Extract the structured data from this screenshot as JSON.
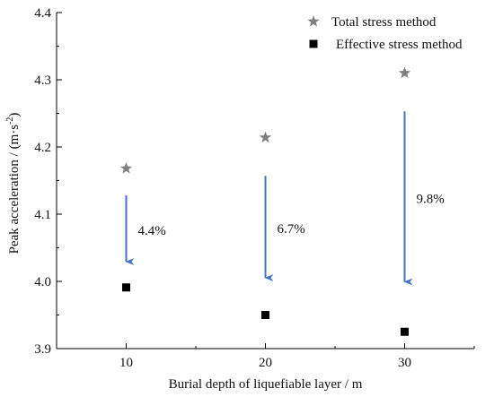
{
  "chart_data": {
    "type": "scatter",
    "xlabel": "Burial depth of liquefiable layer / m",
    "ylabel": "Peak acceleration / (m·s",
    "ylabel_sup": "-2",
    "ylabel_close": ")",
    "xlim": [
      5,
      35
    ],
    "ylim": [
      3.9,
      4.4
    ],
    "x_ticks": [
      10,
      20,
      30
    ],
    "y_ticks": [
      3.9,
      4.0,
      4.1,
      4.2,
      4.3,
      4.4
    ],
    "grid": false,
    "legend_position": "top-right",
    "series": [
      {
        "name": "Total stress method",
        "marker": "star",
        "color": "#7f7f7f",
        "x": [
          10,
          20,
          30
        ],
        "y": [
          4.168,
          4.214,
          4.31
        ]
      },
      {
        "name": "Effective stress method",
        "marker": "square",
        "color": "#000000",
        "x": [
          10,
          20,
          30
        ],
        "y": [
          3.991,
          3.95,
          3.925
        ]
      }
    ],
    "annotations": [
      {
        "x": 10,
        "y_from": 4.128,
        "y_to": 4.024,
        "label": "4.4%",
        "color": "#4472c4"
      },
      {
        "x": 20,
        "y_from": 4.157,
        "y_to": 4.0,
        "label": "6.7%",
        "color": "#4472c4"
      },
      {
        "x": 30,
        "y_from": 4.253,
        "y_to": 3.994,
        "label": "9.8%",
        "color": "#4472c4"
      }
    ]
  }
}
